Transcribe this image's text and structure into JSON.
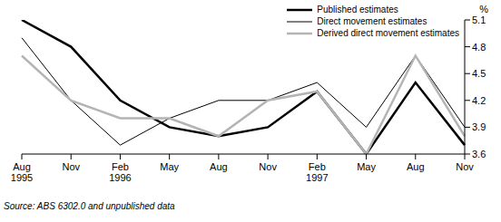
{
  "chart_data": {
    "type": "line",
    "y_label": "%",
    "source": "Source: ABS 6302.0 and unpublished data",
    "categories": [
      "Aug 1995",
      "Nov",
      "Feb 1996",
      "May",
      "Aug",
      "Nov",
      "Feb 1997",
      "May",
      "Aug",
      "Nov"
    ],
    "series": [
      {
        "name": "Published estimates",
        "color": "#000000",
        "line_style": "bold",
        "values": [
          5.1,
          4.8,
          4.2,
          3.9,
          3.8,
          3.9,
          4.3,
          3.6,
          4.4,
          3.7
        ]
      },
      {
        "name": "Direct movement estimates",
        "color": "#000000",
        "line_style": "thin",
        "values": [
          4.9,
          4.2,
          3.7,
          4.0,
          4.2,
          4.2,
          4.4,
          3.9,
          4.7,
          3.9
        ]
      },
      {
        "name": "Derived direct movement estimates",
        "color": "#b4b4b4",
        "line_style": "bold",
        "values": [
          4.7,
          4.2,
          4.0,
          4.0,
          3.8,
          4.2,
          4.3,
          3.6,
          4.7,
          3.8
        ]
      }
    ],
    "ylim": [
      3.6,
      5.1
    ],
    "yticks": [
      3.6,
      3.9,
      4.2,
      4.5,
      4.8,
      5.1
    ],
    "grid": false,
    "legend": "top right"
  }
}
